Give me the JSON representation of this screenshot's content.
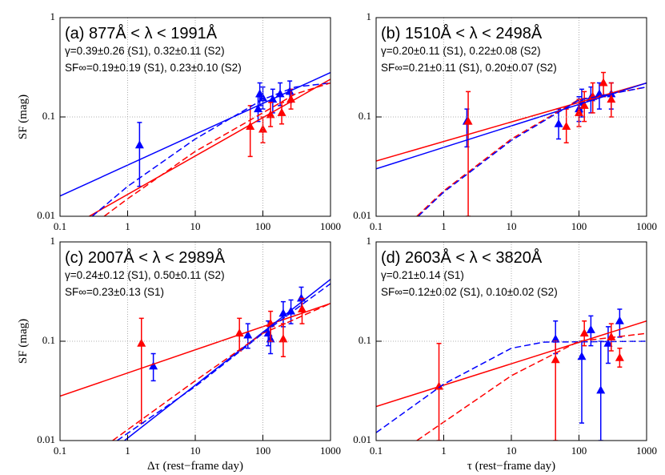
{
  "chart_data": [
    {
      "type": "scatter",
      "title": "(a) 877Å < λ < 1991Å",
      "annotations": [
        "γ=0.39±0.26 (S1), 0.32±0.11 (S2)",
        "SF∞=0.19±0.19 (S1), 0.23±0.10 (S2)"
      ],
      "ylabel": "SF (mag)",
      "xlog": true,
      "ylog": true,
      "grid": true,
      "xlim": [
        0.1,
        1000
      ],
      "ylim": [
        0.01,
        1
      ],
      "xticks": [
        0.1,
        1,
        10,
        100,
        1000
      ],
      "yticks": [
        0.01,
        0.1,
        1
      ],
      "series": [
        {
          "color": "#0000ff",
          "marker": "triangle",
          "x": [
            1.5,
            85,
            90,
            100,
            140,
            180,
            250
          ],
          "values": [
            0.052,
            0.12,
            0.17,
            0.155,
            0.15,
            0.17,
            0.18
          ],
          "lower": [
            0.02,
            0.09,
            0.13,
            0.12,
            0.11,
            0.13,
            0.14
          ],
          "upper": [
            0.088,
            0.16,
            0.22,
            0.2,
            0.19,
            0.22,
            0.23
          ]
        },
        {
          "color": "#ff0000",
          "marker": "triangle",
          "x": [
            65,
            100,
            130,
            190,
            260
          ],
          "values": [
            0.08,
            0.075,
            0.105,
            0.11,
            0.15
          ],
          "lower": [
            0.04,
            0.055,
            0.08,
            0.085,
            0.12
          ],
          "upper": [
            0.13,
            0.1,
            0.14,
            0.14,
            0.19
          ]
        },
        {
          "color": "#0000ff",
          "line": "solid",
          "x": [
            0.1,
            1000
          ],
          "values": [
            0.016,
            0.28
          ]
        },
        {
          "color": "#ff0000",
          "line": "solid",
          "x": [
            0.27,
            1000
          ],
          "values": [
            0.01,
            0.24
          ]
        },
        {
          "color": "#0000ff",
          "line": "dashed",
          "x": [
            0.3,
            1,
            10,
            100,
            300,
            1000
          ],
          "values": [
            0.01,
            0.02,
            0.06,
            0.15,
            0.2,
            0.22
          ]
        },
        {
          "color": "#ff0000",
          "line": "dashed",
          "x": [
            0.45,
            1,
            10,
            100,
            300,
            1000
          ],
          "values": [
            0.01,
            0.015,
            0.045,
            0.11,
            0.17,
            0.22
          ]
        }
      ]
    },
    {
      "type": "scatter",
      "title": "(b) 1510Å < λ < 2498Å",
      "annotations": [
        "γ=0.20±0.11 (S1), 0.22±0.08 (S2)",
        "SF∞=0.21±0.11 (S1), 0.20±0.07 (S2)"
      ],
      "xlog": true,
      "ylog": true,
      "grid": true,
      "xlim": [
        0.1,
        1000
      ],
      "ylim": [
        0.01,
        1
      ],
      "xticks": [
        0.1,
        1,
        10,
        100,
        1000
      ],
      "yticks": [
        0.01,
        0.1,
        1
      ],
      "series": [
        {
          "color": "#0000ff",
          "marker": "triangle",
          "x": [
            2.2,
            50,
            100,
            110,
            150,
            200,
            300
          ],
          "values": [
            0.09,
            0.085,
            0.12,
            0.14,
            0.155,
            0.17,
            0.17
          ],
          "lower": [
            0.05,
            0.06,
            0.09,
            0.1,
            0.11,
            0.12,
            0.12
          ],
          "upper": [
            0.12,
            0.12,
            0.16,
            0.19,
            0.2,
            0.22,
            0.22
          ]
        },
        {
          "color": "#ff0000",
          "marker": "triangle",
          "x": [
            2.3,
            65,
            100,
            120,
            160,
            230,
            300
          ],
          "values": [
            0.09,
            0.08,
            0.11,
            0.13,
            0.16,
            0.22,
            0.15
          ],
          "lower": [
            0.01,
            0.055,
            0.08,
            0.09,
            0.11,
            0.16,
            0.1
          ],
          "upper": [
            0.18,
            0.12,
            0.15,
            0.18,
            0.22,
            0.28,
            0.22
          ]
        },
        {
          "color": "#ff0000",
          "line": "solid",
          "x": [
            0.1,
            1000
          ],
          "values": [
            0.036,
            0.22
          ]
        },
        {
          "color": "#0000ff",
          "line": "solid",
          "x": [
            0.1,
            1000
          ],
          "values": [
            0.03,
            0.22
          ]
        },
        {
          "color": "#ff0000",
          "line": "dashed",
          "x": [
            0.4,
            1,
            10,
            100,
            1000
          ],
          "values": [
            0.01,
            0.018,
            0.06,
            0.15,
            0.2
          ]
        },
        {
          "color": "#0000ff",
          "line": "dashed",
          "x": [
            0.42,
            1,
            10,
            100,
            1000
          ],
          "values": [
            0.01,
            0.0175,
            0.058,
            0.148,
            0.2
          ]
        }
      ]
    },
    {
      "type": "scatter",
      "title": "(c) 2007Å < λ < 2989Å",
      "annotations": [
        "γ=0.24±0.12 (S1), 0.50±0.11 (S2)",
        "SF∞=0.23±0.13 (S1)"
      ],
      "ylabel": "SF (mag)",
      "xlabel": "Δτ (rest−frame day)",
      "xlog": true,
      "ylog": true,
      "grid": true,
      "xlim": [
        0.1,
        1000
      ],
      "ylim": [
        0.01,
        1
      ],
      "xticks": [
        0.1,
        1,
        10,
        100,
        1000
      ],
      "yticks": [
        0.01,
        0.1,
        1
      ],
      "series": [
        {
          "color": "#0000ff",
          "marker": "triangle",
          "x": [
            2.4,
            60,
            120,
            130,
            200,
            260,
            370
          ],
          "values": [
            0.056,
            0.115,
            0.12,
            0.105,
            0.19,
            0.2,
            0.27
          ],
          "lower": [
            0.04,
            0.085,
            0.09,
            0.075,
            0.14,
            0.15,
            0.2
          ],
          "upper": [
            0.075,
            0.15,
            0.16,
            0.14,
            0.25,
            0.26,
            0.35
          ]
        },
        {
          "color": "#ff0000",
          "marker": "triangle",
          "x": [
            1.6,
            45,
            130,
            200,
            380
          ],
          "values": [
            0.095,
            0.12,
            0.15,
            0.105,
            0.21
          ],
          "lower": [
            0.015,
            0.08,
            0.1,
            0.07,
            0.15
          ],
          "upper": [
            0.17,
            0.17,
            0.2,
            0.15,
            0.27
          ]
        },
        {
          "color": "#ff0000",
          "line": "solid",
          "x": [
            0.1,
            1000
          ],
          "values": [
            0.028,
            0.24
          ]
        },
        {
          "color": "#0000ff",
          "line": "solid",
          "x": [
            0.9,
            1000
          ],
          "values": [
            0.01,
            0.42
          ]
        },
        {
          "color": "#ff0000",
          "line": "dashed",
          "x": [
            0.6,
            10,
            100,
            1000
          ],
          "values": [
            0.01,
            0.04,
            0.12,
            0.24
          ]
        },
        {
          "color": "#0000ff",
          "line": "dashed",
          "x": [
            0.7,
            10,
            100,
            1000
          ],
          "values": [
            0.01,
            0.035,
            0.12,
            0.38
          ]
        }
      ]
    },
    {
      "type": "scatter",
      "title": "(d) 2603Å < λ < 3820Å",
      "annotations": [
        "γ=0.21±0.14 (S1)",
        "SF∞=0.12±0.02 (S1), 0.10±0.02 (S2)"
      ],
      "xlabel": "τ (rest−frame day)",
      "xlog": true,
      "ylog": true,
      "grid": true,
      "xlim": [
        0.1,
        1000
      ],
      "ylim": [
        0.01,
        1
      ],
      "xticks": [
        0.1,
        1,
        10,
        100,
        1000
      ],
      "yticks": [
        0.01,
        0.1,
        1
      ],
      "series": [
        {
          "color": "#0000ff",
          "marker": "triangle",
          "x": [
            45,
            110,
            150,
            210,
            270,
            400
          ],
          "values": [
            0.105,
            0.07,
            0.13,
            0.032,
            0.095,
            0.16
          ],
          "lower": [
            0.075,
            0.015,
            0.09,
            0.01,
            0.06,
            0.11
          ],
          "upper": [
            0.16,
            0.1,
            0.18,
            0.1,
            0.14,
            0.21
          ]
        },
        {
          "color": "#ff0000",
          "marker": "triangle",
          "x": [
            0.85,
            45,
            120,
            300,
            400
          ],
          "values": [
            0.035,
            0.065,
            0.12,
            0.11,
            0.068
          ],
          "lower": [
            0.01,
            0.01,
            0.09,
            0.08,
            0.055
          ],
          "upper": [
            0.095,
            0.1,
            0.16,
            0.15,
            0.085
          ]
        },
        {
          "color": "#ff0000",
          "line": "solid",
          "x": [
            0.1,
            1000
          ],
          "values": [
            0.022,
            0.16
          ]
        },
        {
          "color": "#0000ff",
          "line": "dashed",
          "x": [
            0.1,
            1,
            10,
            30,
            1000
          ],
          "values": [
            0.012,
            0.037,
            0.085,
            0.098,
            0.1
          ]
        },
        {
          "color": "#ff0000",
          "line": "dashed",
          "x": [
            0.4,
            10,
            100,
            1000
          ],
          "values": [
            0.01,
            0.045,
            0.1,
            0.12
          ]
        }
      ]
    }
  ]
}
